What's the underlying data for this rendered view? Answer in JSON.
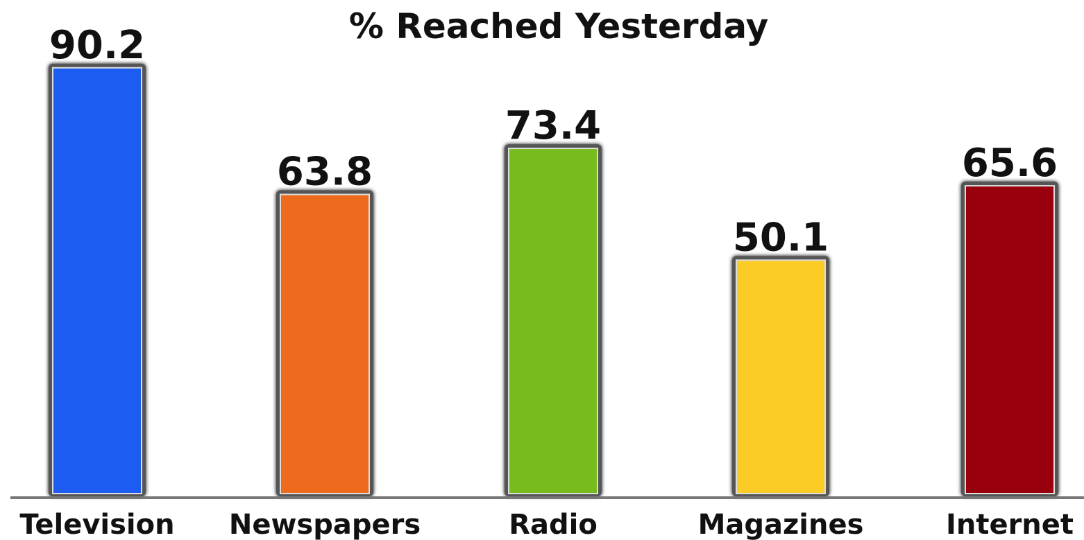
{
  "chart_data": {
    "type": "bar",
    "title": "% Reached Yesterday",
    "xlabel": "",
    "ylabel": "",
    "categories": [
      "Television",
      "Newspapers",
      "Radio",
      "Magazines",
      "Internet"
    ],
    "values": [
      90.2,
      63.8,
      73.4,
      50.1,
      65.6
    ],
    "value_labels": [
      "90.2",
      "63.8",
      "73.4",
      "50.1",
      "65.6"
    ],
    "colors": [
      "#1a5cf0",
      "#ee6a1c",
      "#78bb1e",
      "#fccc25",
      "#980010"
    ],
    "ylim": [
      0,
      100
    ],
    "grid": false,
    "legend": "none"
  }
}
